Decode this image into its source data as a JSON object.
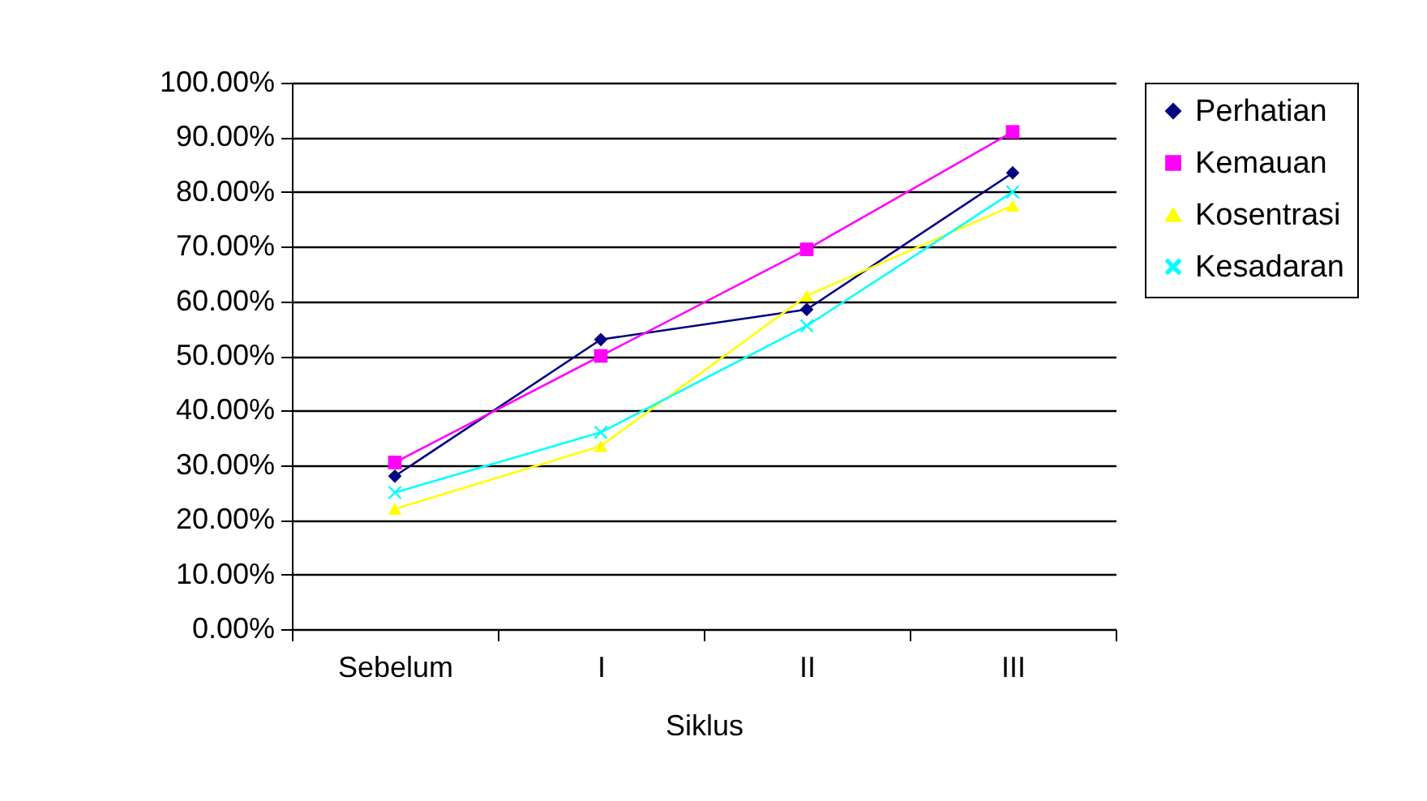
{
  "chart_data": {
    "type": "line",
    "xlabel": "Siklus",
    "categories": [
      "Sebelum",
      "I",
      "II",
      "III"
    ],
    "series": [
      {
        "name": "Perhatian",
        "color": "#000080",
        "marker": "diamond",
        "values": [
          28,
          53,
          58.5,
          83.5
        ]
      },
      {
        "name": "Kemauan",
        "color": "#ff00ff",
        "marker": "square",
        "values": [
          30.5,
          50,
          69.5,
          91
        ]
      },
      {
        "name": "Kosentrasi",
        "color": "#ffff00",
        "marker": "triangle",
        "values": [
          22,
          33.5,
          61,
          77.5
        ]
      },
      {
        "name": "Kesadaran",
        "color": "#00ffff",
        "marker": "cross",
        "values": [
          25,
          36,
          55.5,
          80
        ]
      }
    ],
    "ylim": [
      0,
      100
    ],
    "yticks": [
      {
        "value": 0,
        "label": "0.00%"
      },
      {
        "value": 10,
        "label": "10.00%"
      },
      {
        "value": 20,
        "label": "20.00%"
      },
      {
        "value": 30,
        "label": "30.00%"
      },
      {
        "value": 40,
        "label": "40.00%"
      },
      {
        "value": 50,
        "label": "50.00%"
      },
      {
        "value": 60,
        "label": "60.00%"
      },
      {
        "value": 70,
        "label": "70.00%"
      },
      {
        "value": 80,
        "label": "80.00%"
      },
      {
        "value": 90,
        "label": "90.00%"
      },
      {
        "value": 100,
        "label": "100.00%"
      }
    ],
    "grid": "y",
    "legend": "right"
  }
}
